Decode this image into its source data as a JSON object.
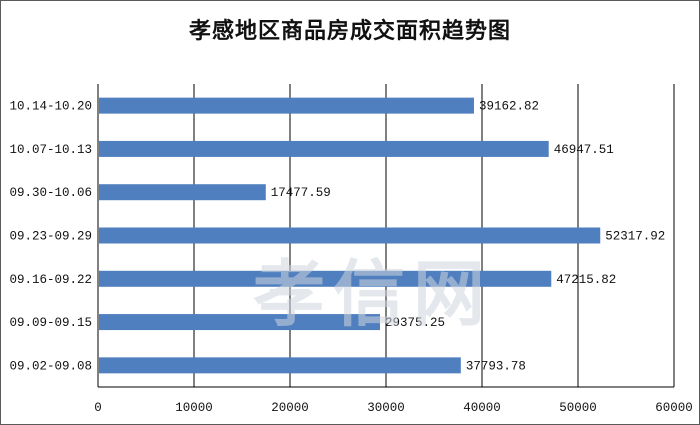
{
  "chart_data": {
    "type": "bar",
    "orientation": "horizontal",
    "title": "孝感地区商品房成交面积趋势图",
    "categories": [
      "10.14-10.20",
      "10.07-10.13",
      "09.30-10.06",
      "09.23-09.29",
      "09.16-09.22",
      "09.09-09.15",
      "09.02-09.08"
    ],
    "values": [
      39162.82,
      46947.51,
      17477.59,
      52317.92,
      47215.82,
      29375.25,
      37793.78
    ],
    "value_labels": [
      "39162.82",
      "46947.51",
      "17477.59",
      "52317.92",
      "47215.82",
      "29375.25",
      "37793.78"
    ],
    "xlim": [
      0,
      60000
    ],
    "x_ticks": [
      "0",
      "10000",
      "20000",
      "30000",
      "40000",
      "50000",
      "60000"
    ],
    "grid": "vertical",
    "legend": "none",
    "bar_color": "#4f7fbf"
  },
  "watermark": {
    "text": "孝信网"
  }
}
